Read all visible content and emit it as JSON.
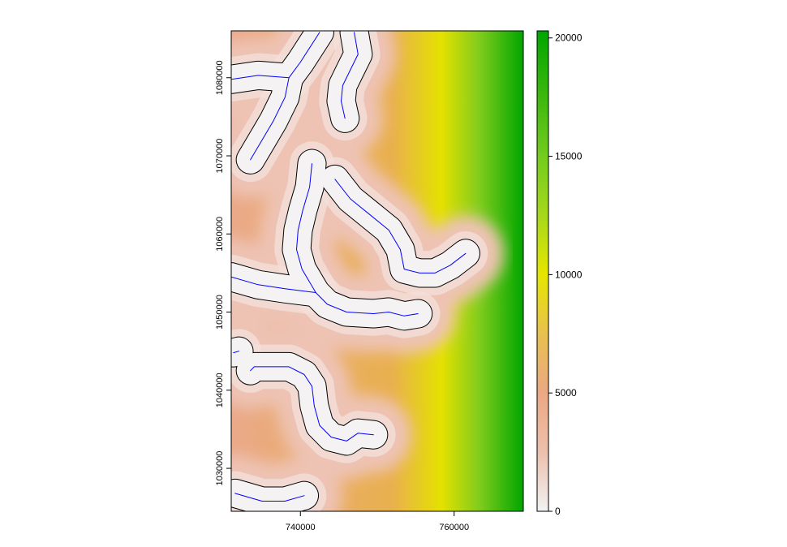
{
  "chart_data": {
    "type": "heatmap",
    "title": "",
    "xlabel": "",
    "ylabel": "",
    "xlim": [
      731000,
      769000
    ],
    "ylim": [
      1024500,
      1086000
    ],
    "x_ticks": [
      740000,
      760000
    ],
    "y_ticks": [
      1030000,
      1040000,
      1050000,
      1060000,
      1070000,
      1080000
    ],
    "colorbar": {
      "min": 0,
      "max": 20300,
      "ticks": [
        0,
        5000,
        10000,
        15000,
        20000
      ],
      "stops": [
        {
          "value": 0,
          "color": "#f2f2f2"
        },
        {
          "value": 2500,
          "color": "#ecc0ad"
        },
        {
          "value": 5000,
          "color": "#eba884"
        },
        {
          "value": 7500,
          "color": "#e8c14e"
        },
        {
          "value": 10000,
          "color": "#e6e600"
        },
        {
          "value": 12500,
          "color": "#a6d81c"
        },
        {
          "value": 15000,
          "color": "#74cb1e"
        },
        {
          "value": 17500,
          "color": "#3db80d"
        },
        {
          "value": 20300,
          "color": "#00a600"
        }
      ]
    },
    "series": [
      {
        "kind": "stream",
        "color": "#0000ff",
        "points": [
          [
            731000,
            1079800
          ],
          [
            734500,
            1080300
          ],
          [
            738500,
            1080000
          ]
        ]
      },
      {
        "kind": "stream",
        "color": "#0000ff",
        "points": [
          [
            742500,
            1085800
          ],
          [
            740000,
            1082000
          ],
          [
            738500,
            1080000
          ],
          [
            738000,
            1077500
          ],
          [
            736500,
            1074500
          ],
          [
            735000,
            1072000
          ],
          [
            733500,
            1069500
          ]
        ]
      },
      {
        "kind": "stream",
        "color": "#0000ff",
        "points": [
          [
            747000,
            1085800
          ],
          [
            747500,
            1083000
          ],
          [
            746500,
            1081000
          ],
          [
            745500,
            1079000
          ],
          [
            745300,
            1077000
          ],
          [
            745800,
            1074800
          ]
        ]
      },
      {
        "kind": "stream",
        "color": "#0000ff",
        "points": [
          [
            741500,
            1069000
          ],
          [
            741200,
            1066000
          ],
          [
            740300,
            1063000
          ],
          [
            739700,
            1060500
          ],
          [
            739500,
            1058000
          ],
          [
            740200,
            1055500
          ],
          [
            742000,
            1052500
          ],
          [
            743500,
            1051000
          ],
          [
            746000,
            1050000
          ],
          [
            749500,
            1049800
          ],
          [
            751500,
            1050000
          ],
          [
            753500,
            1049500
          ],
          [
            755300,
            1049800
          ]
        ]
      },
      {
        "kind": "stream",
        "color": "#0000ff",
        "points": [
          [
            731000,
            1054500
          ],
          [
            734500,
            1053500
          ],
          [
            738000,
            1053000
          ],
          [
            742000,
            1052500
          ]
        ]
      },
      {
        "kind": "stream",
        "color": "#0000ff",
        "points": [
          [
            744500,
            1067000
          ],
          [
            746500,
            1064500
          ],
          [
            749000,
            1062500
          ],
          [
            751500,
            1060500
          ],
          [
            753000,
            1058000
          ],
          [
            753500,
            1055500
          ],
          [
            755500,
            1055000
          ],
          [
            757500,
            1055000
          ],
          [
            759500,
            1056000
          ],
          [
            761500,
            1057500
          ]
        ]
      },
      {
        "kind": "stream",
        "color": "#0000ff",
        "points": [
          [
            731300,
            1044800
          ],
          [
            732000,
            1045000
          ]
        ]
      },
      {
        "kind": "stream",
        "color": "#0000ff",
        "points": [
          [
            733500,
            1042500
          ],
          [
            734000,
            1043000
          ],
          [
            736000,
            1043000
          ],
          [
            738500,
            1043000
          ],
          [
            740500,
            1042000
          ],
          [
            741500,
            1040500
          ],
          [
            741800,
            1038000
          ],
          [
            742500,
            1035500
          ],
          [
            744000,
            1034000
          ],
          [
            746000,
            1033500
          ],
          [
            747500,
            1034500
          ],
          [
            749500,
            1034300
          ]
        ]
      },
      {
        "kind": "stream",
        "color": "#0000ff",
        "points": [
          [
            731500,
            1026800
          ],
          [
            735000,
            1025800
          ],
          [
            738000,
            1025800
          ],
          [
            740500,
            1026500
          ]
        ]
      }
    ],
    "buffer": {
      "color": "#000000",
      "half_width": 1800
    }
  }
}
